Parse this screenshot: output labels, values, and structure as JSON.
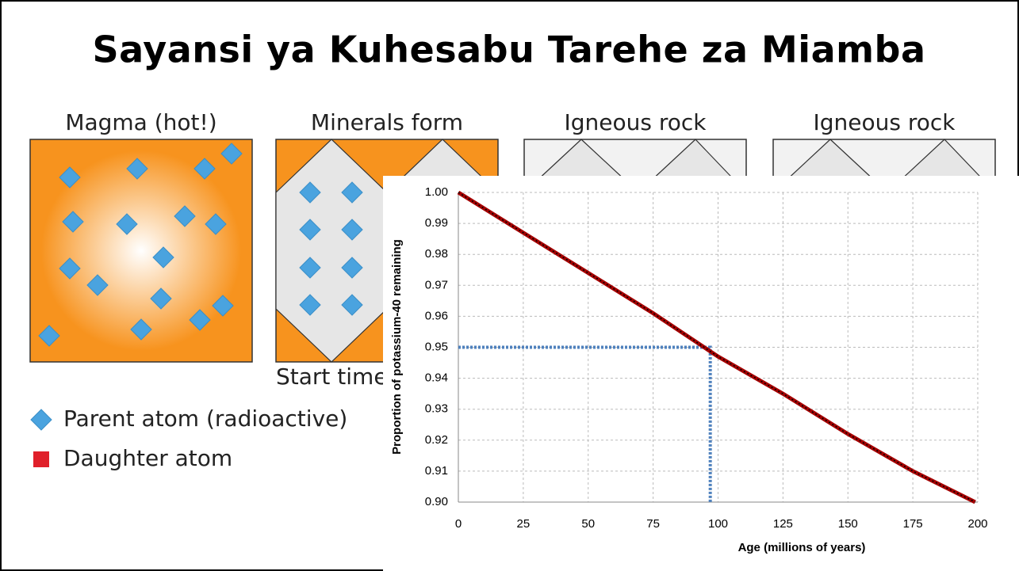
{
  "slide": {
    "title": "Sayansi ya Kuhesabu Tarehe za Miamba",
    "panels": [
      "Magma (hot!)",
      "Minerals form",
      "Igneous rock",
      "Igneous rock"
    ],
    "caption": "Start time",
    "legend": [
      "Parent atom (radioactive)",
      "Daughter atom"
    ]
  },
  "chart_data": {
    "type": "line",
    "x": [
      0,
      25,
      50,
      75,
      100,
      125,
      150,
      175,
      199
    ],
    "series": [
      {
        "name": "Potassium-40",
        "color": "#a50000",
        "values": [
          1.0,
          0.987,
          0.974,
          0.961,
          0.947,
          0.935,
          0.922,
          0.91,
          0.9
        ]
      }
    ],
    "trendline_color": "#000000",
    "reference": {
      "x": 97,
      "y": 0.95,
      "color": "#4f81bd"
    },
    "xlabel": "Age (millions of years)",
    "ylabel": "Proportion of potassium-40 remaining",
    "xlim": [
      0,
      200
    ],
    "xticks": [
      0,
      25,
      50,
      75,
      100,
      125,
      150,
      175,
      200
    ],
    "ylim": [
      0.9,
      1
    ],
    "yticks": [
      {
        "value": 1,
        "label": "1.00"
      },
      0.99,
      0.98,
      0.97,
      0.96,
      0.95,
      0.94,
      0.93,
      0.92,
      0.91,
      {
        "value": 0.9,
        "label": "0.90"
      }
    ],
    "grid": true
  }
}
